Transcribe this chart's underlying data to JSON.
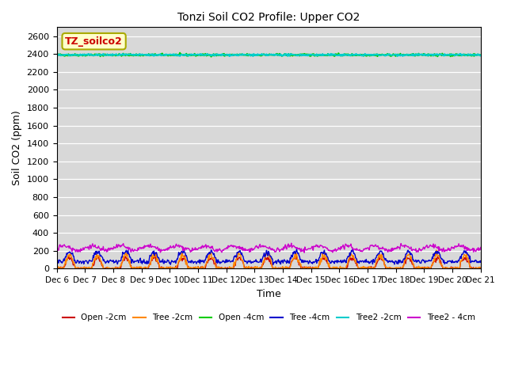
{
  "title": "Tonzi Soil CO2 Profile: Upper CO2",
  "xlabel": "Time",
  "ylabel": "Soil CO2 (ppm)",
  "ylim": [
    0,
    2700
  ],
  "yticks": [
    0,
    200,
    400,
    600,
    800,
    1000,
    1200,
    1400,
    1600,
    1800,
    2000,
    2200,
    2400,
    2600
  ],
  "xtick_positions": [
    0,
    1,
    2,
    3,
    4,
    5,
    6,
    7,
    8,
    9,
    10,
    11,
    12,
    13,
    14,
    15
  ],
  "xtick_labels": [
    "Dec 6",
    "Dec 7",
    "Dec 8",
    "Dec 9",
    "Dec 10",
    "Dec 11",
    "Dec 12",
    "Dec 13",
    "Dec 14",
    "Dec 15",
    "Dec 16",
    "Dec 17",
    "Dec 18",
    "Dec 19",
    "Dec 20",
    "Dec 21"
  ],
  "n_days": 16,
  "legend_label": "TZ_soilco2",
  "legend_box_color": "#ffffcc",
  "legend_text_color": "#cc0000",
  "background_color": "#d8d8d8",
  "series": {
    "open_2cm": {
      "color": "#cc0000",
      "label": "Open -2cm"
    },
    "tree_2cm": {
      "color": "#ff8800",
      "label": "Tree -2cm"
    },
    "open_4cm": {
      "color": "#00cc00",
      "label": "Open -4cm"
    },
    "tree_4cm": {
      "color": "#0000cc",
      "label": "Tree -4cm"
    },
    "tree2_2cm": {
      "color": "#00cccc",
      "label": "Tree2 -2cm"
    },
    "tree2_4cm": {
      "color": "#cc00cc",
      "label": "Tree2 - 4cm"
    }
  }
}
